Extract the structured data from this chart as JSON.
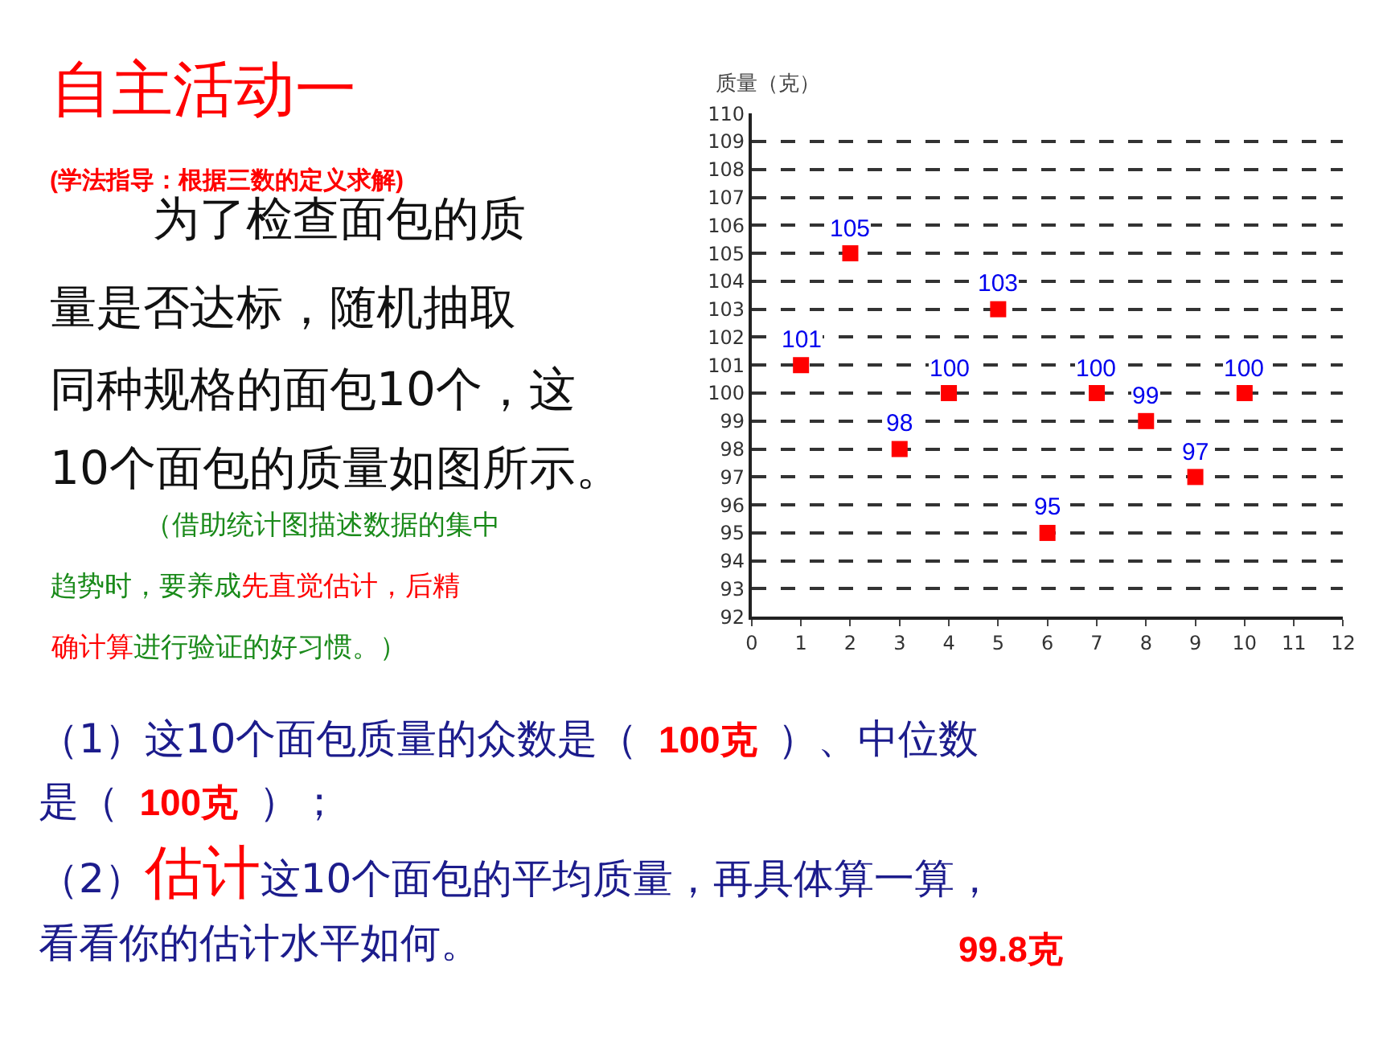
{
  "chart_data": {
    "type": "scatter",
    "title": "自主活动一",
    "ylabel": "质量（克）",
    "x": [
      1,
      2,
      3,
      4,
      5,
      6,
      7,
      8,
      9,
      10
    ],
    "series": [
      {
        "color": "#ff0000",
        "values": [
          101,
          105,
          98,
          100,
          103,
          95,
          100,
          99,
          97,
          100
        ]
      }
    ],
    "xlim": [
      0,
      12
    ],
    "xticks": [
      0,
      1,
      2,
      3,
      4,
      5,
      6,
      7,
      8,
      9,
      10,
      11,
      12
    ],
    "ylim": [
      92,
      110
    ],
    "yticks": [
      92,
      93,
      94,
      95,
      96,
      97,
      98,
      99,
      100,
      101,
      102,
      103,
      104,
      105,
      106,
      107,
      108,
      109,
      110
    ],
    "grid": "y",
    "marker": "square",
    "data_labels": true,
    "annotations": [
      "(学法指导：根据三数的定义求解)",
      "为了检查面包的质",
      "量是否达标，随机抽取",
      "同种规格的面包10个，这",
      "10个面包的质量如图所示。",
      "（借助统计图描述数据的集中",
      "趋势时，要养成",
      "先直觉估计，后精",
      "确计算",
      "进行验证的好习惯。）",
      "（1）这10个面包质量的众数是（",
      "100克",
      "）、中位数",
      "是（",
      "100克",
      "）；",
      "（2）",
      "估计",
      "这10个面包的平均质量，再具体算一算，",
      "看看你的估计水平如何。",
      "99.8克"
    ]
  }
}
